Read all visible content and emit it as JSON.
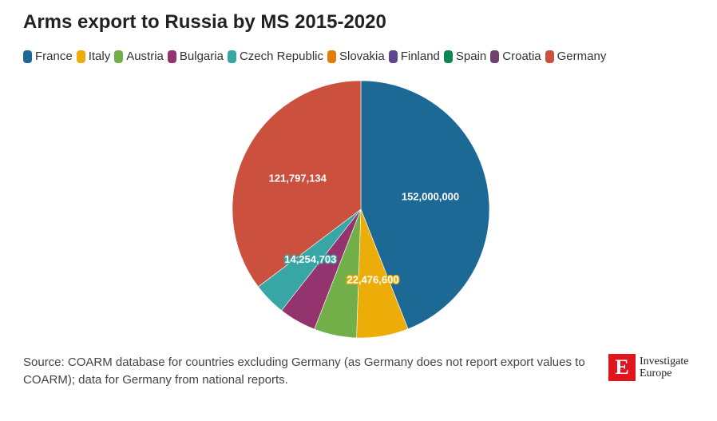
{
  "chart_data": {
    "type": "pie",
    "title": "Arms export to Russia by MS 2015-2020",
    "categories": [
      "France",
      "Italy",
      "Austria",
      "Bulgaria",
      "Czech Republic",
      "Slovakia",
      "Finland",
      "Spain",
      "Croatia",
      "Germany"
    ],
    "values": [
      152000000,
      22476600,
      18500000,
      16200000,
      14254703,
      0,
      0,
      0,
      0,
      121797134
    ],
    "colors": [
      "#1d6996",
      "#edad08",
      "#73af48",
      "#94346e",
      "#38a6a5",
      "#e17c05",
      "#5f4690",
      "#0f8554",
      "#6f4070",
      "#cc503e"
    ],
    "data_labels": {
      "France": "152,000,000",
      "Italy": "22,476,600",
      "Czech Republic": "14,254,703",
      "Germany": "121,797,134"
    },
    "legend_position": "top-left"
  },
  "source": "Source: COARM database for countries excluding Germany (as Germany does not report export values to COARM); data for Germany from national reports.",
  "logo": {
    "mark": "E",
    "line1": "Investigate",
    "line2": "Europe"
  }
}
